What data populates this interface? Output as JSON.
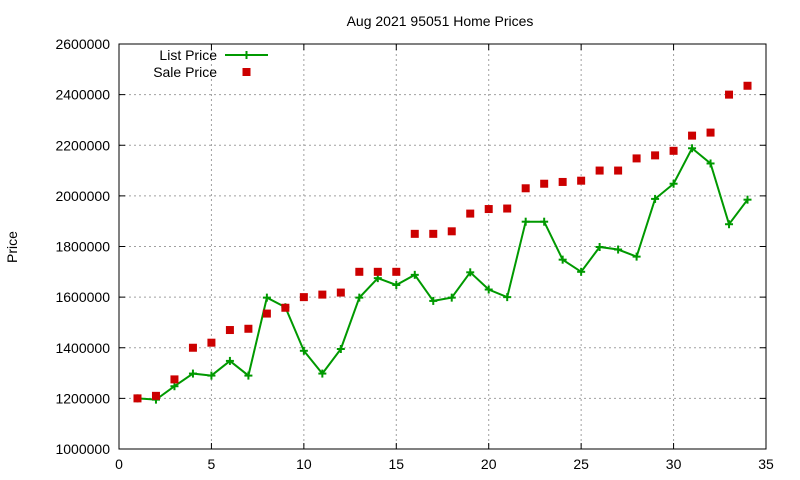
{
  "chart_data": {
    "type": "line",
    "title": "Aug 2021 95051 Home Prices",
    "xlabel": "",
    "ylabel": "Price",
    "xlim": [
      0,
      35
    ],
    "ylim": [
      1000000,
      2600000
    ],
    "xticks": [
      0,
      5,
      10,
      15,
      20,
      25,
      30,
      35
    ],
    "yticks": [
      1000000,
      1200000,
      1400000,
      1600000,
      1800000,
      2000000,
      2200000,
      2400000,
      2600000
    ],
    "grid": true,
    "legend_position": "top-left",
    "series": [
      {
        "name": "List Price",
        "style": "line-plus",
        "color": "#009900",
        "x": [
          1,
          2,
          3,
          4,
          5,
          6,
          7,
          8,
          9,
          10,
          11,
          12,
          13,
          14,
          15,
          16,
          17,
          18,
          19,
          20,
          21,
          22,
          23,
          24,
          25,
          26,
          27,
          28,
          29,
          30,
          31,
          32,
          33,
          34
        ],
        "y": [
          1200000,
          1195000,
          1248000,
          1298000,
          1290000,
          1348000,
          1290000,
          1598000,
          1560000,
          1388000,
          1298000,
          1395000,
          1598000,
          1675000,
          1648000,
          1688000,
          1585000,
          1598000,
          1698000,
          1630000,
          1600000,
          1898000,
          1898000,
          1748000,
          1700000,
          1798000,
          1788000,
          1760000,
          1988000,
          2048000,
          2188000,
          2128000,
          1888000,
          1985000
        ]
      },
      {
        "name": "Sale Price",
        "style": "square",
        "color": "#cc0000",
        "x": [
          1,
          2,
          3,
          4,
          5,
          6,
          7,
          8,
          9,
          10,
          11,
          12,
          13,
          14,
          15,
          16,
          17,
          18,
          19,
          20,
          21,
          22,
          23,
          24,
          25,
          26,
          27,
          28,
          29,
          30,
          31,
          32,
          33,
          34
        ],
        "y": [
          1200000,
          1210000,
          1275000,
          1400000,
          1420000,
          1470000,
          1475000,
          1535000,
          1558000,
          1600000,
          1610000,
          1618000,
          1700000,
          1700000,
          1700000,
          1850000,
          1850000,
          1860000,
          1930000,
          1948000,
          1950000,
          2030000,
          2048000,
          2055000,
          2060000,
          2100000,
          2100000,
          2148000,
          2160000,
          2178000,
          2238000,
          2250000,
          2400000,
          2435000
        ]
      }
    ]
  }
}
